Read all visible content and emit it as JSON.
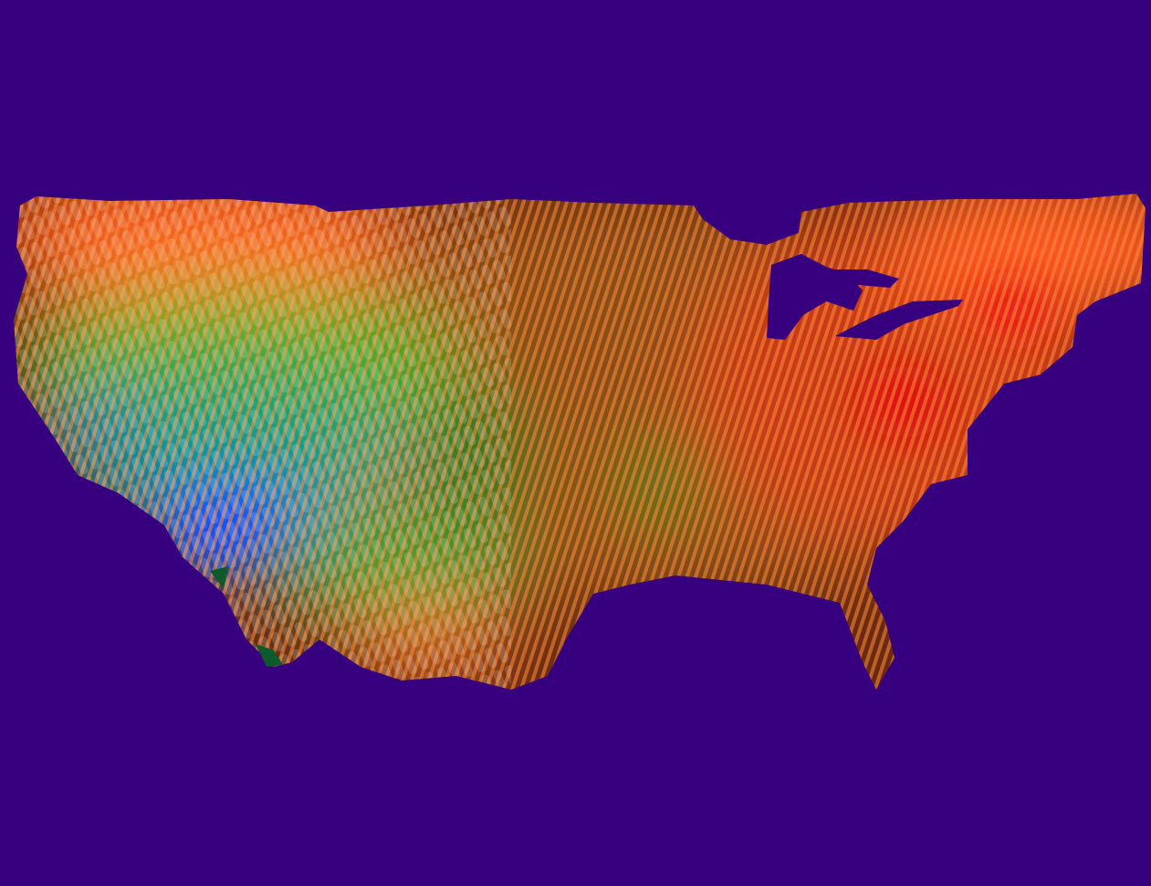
{
  "scene": {
    "background_color": "#36007f",
    "region": "contiguous-united-states",
    "colors": {
      "low": "#1060ff",
      "mid_low": "#10a060",
      "mid": "#30b020",
      "mid_high": "#b07010",
      "high": "#ff5a20",
      "peak": "#e01010"
    },
    "hotspots": [
      {
        "name": "southwest-low",
        "level": "low"
      },
      {
        "name": "west-coast-low",
        "level": "low"
      },
      {
        "name": "plains-green",
        "level": "mid"
      },
      {
        "name": "northeast-peak",
        "level": "peak"
      },
      {
        "name": "midatlantic-peak",
        "level": "peak"
      }
    ]
  }
}
